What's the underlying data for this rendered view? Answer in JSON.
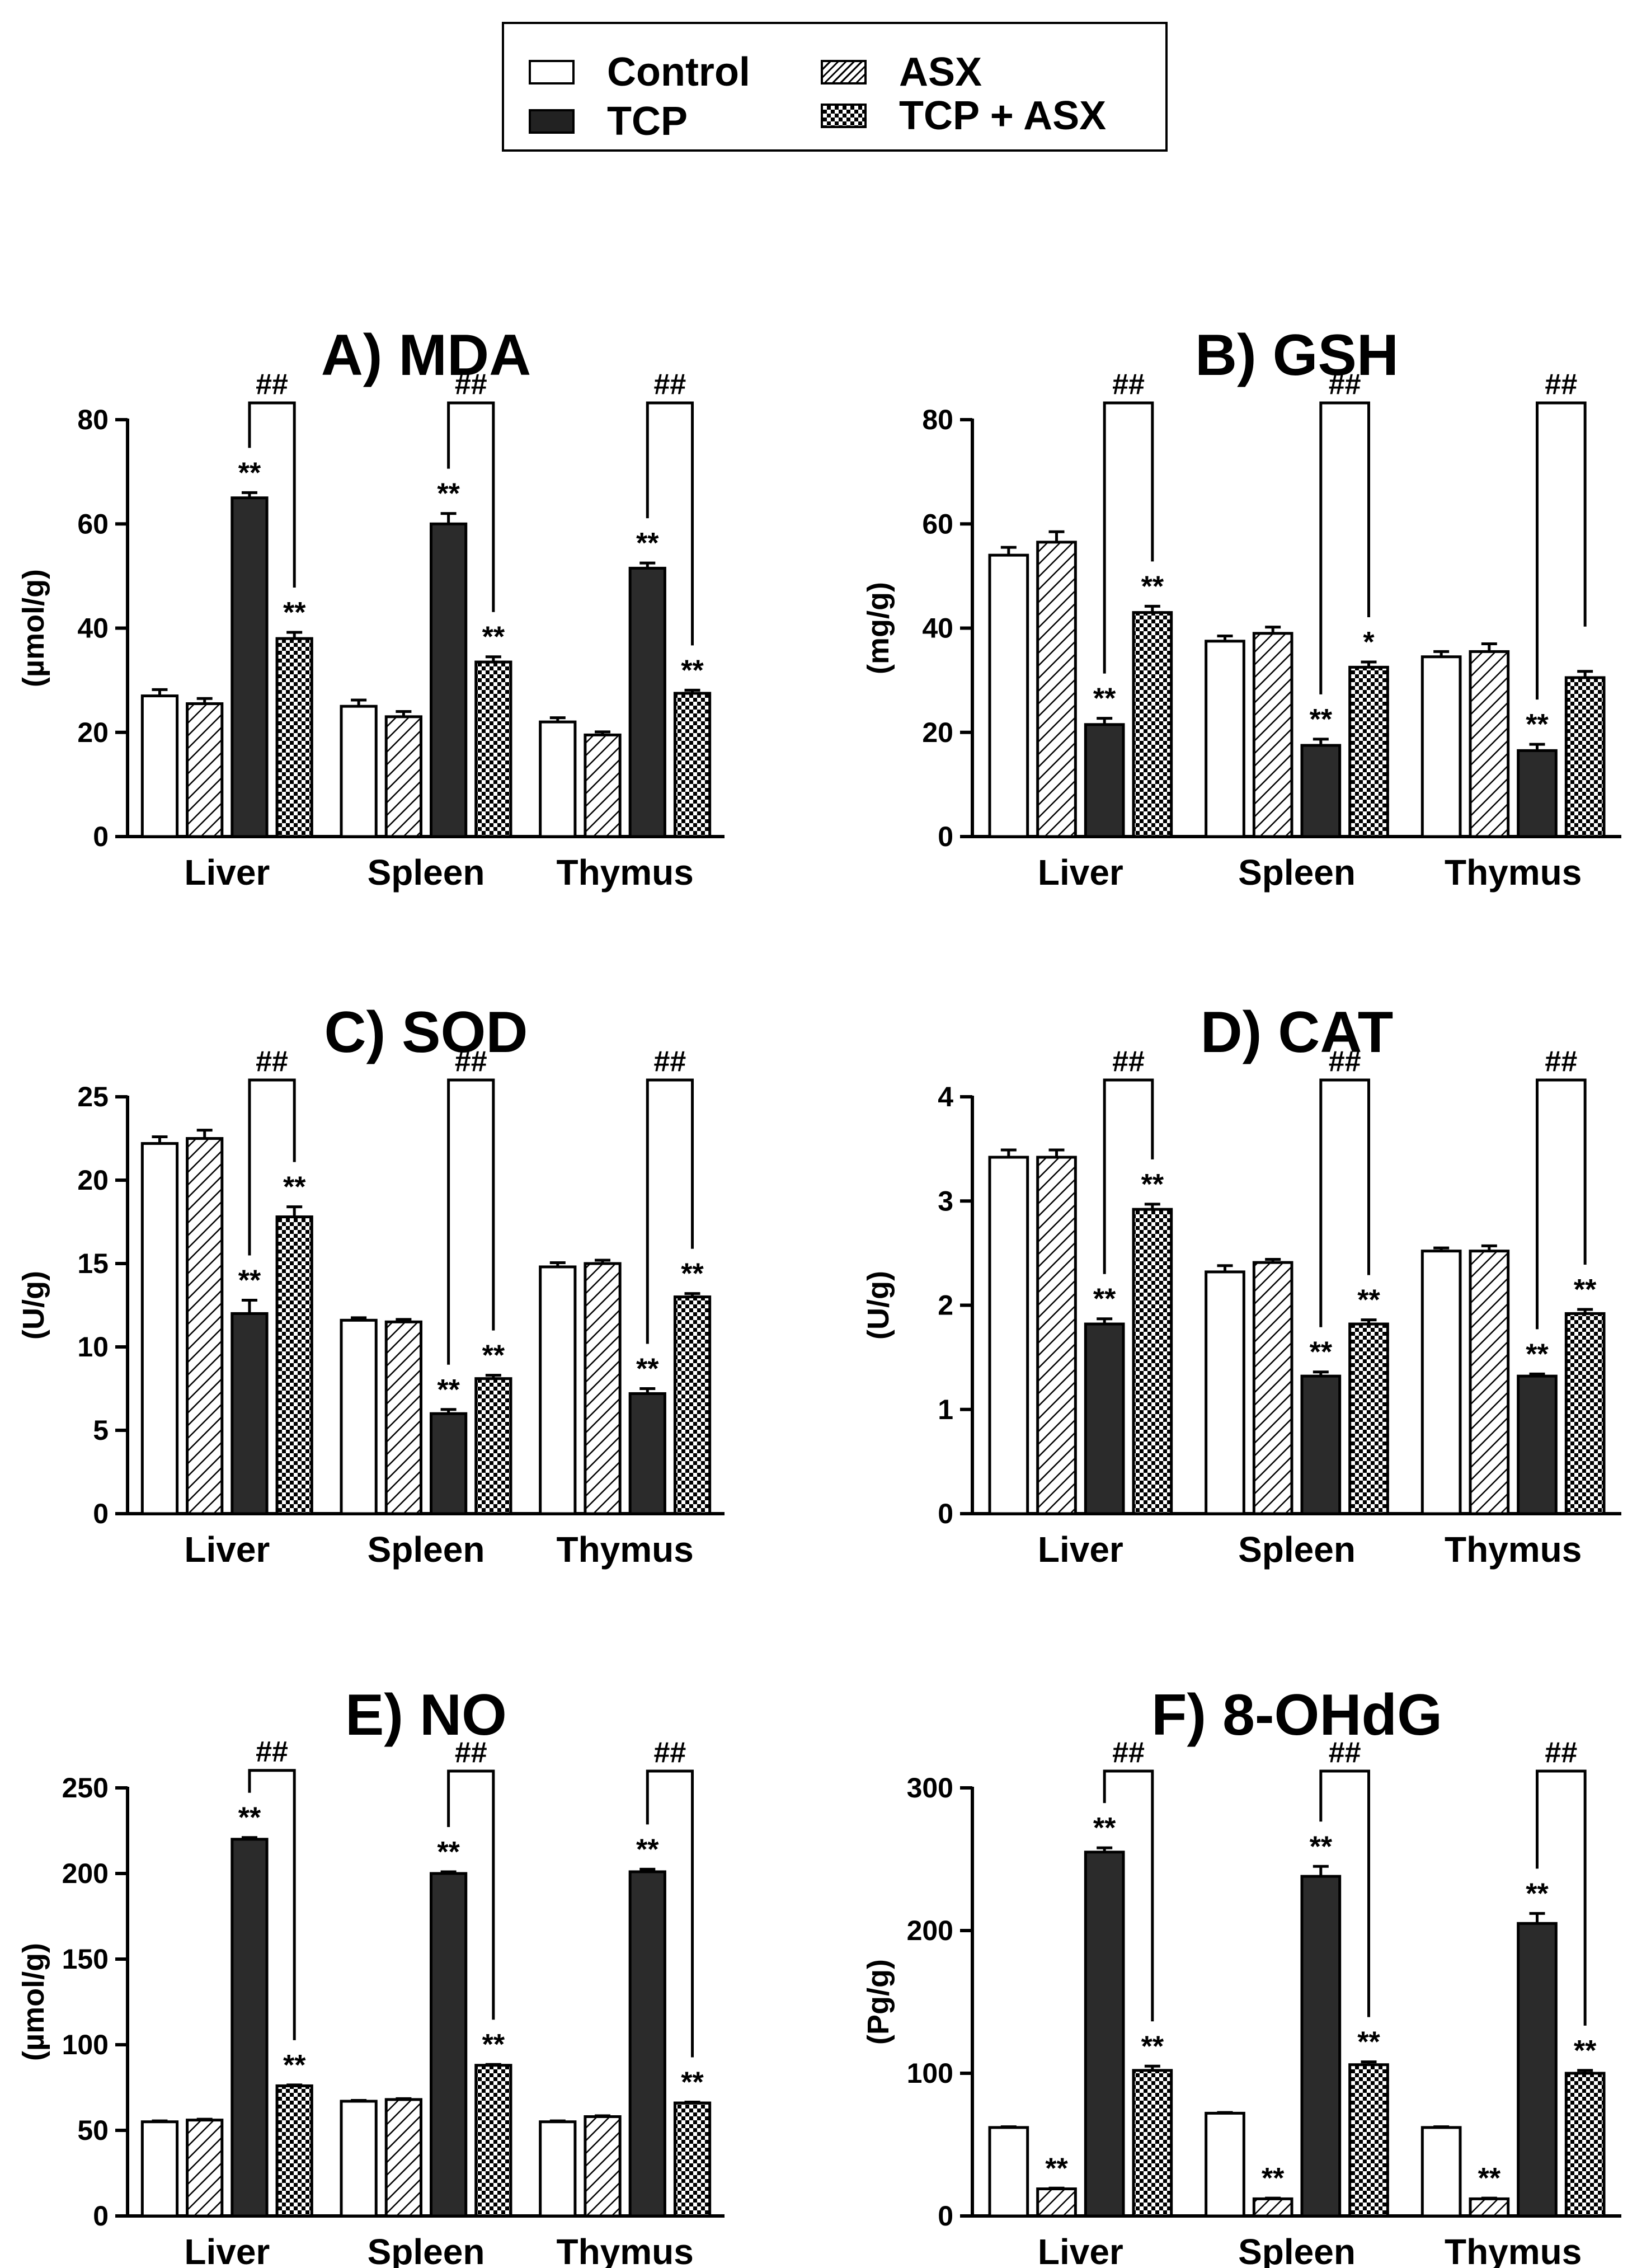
{
  "legend": {
    "items": [
      {
        "label": "Control",
        "pattern": "white"
      },
      {
        "label": "ASX",
        "pattern": "hatch"
      },
      {
        "label": "TCP",
        "pattern": "black"
      },
      {
        "label": "TCP + ASX",
        "pattern": "checker"
      }
    ]
  },
  "colors": {
    "bar_dark": "#2b2b2b",
    "stroke": "#000000",
    "background": "#ffffff"
  },
  "chart_data": [
    {
      "type": "bar",
      "title": "A) MDA",
      "ylabel": "(µmol/g)",
      "categories": [
        "Liver",
        "Spleen",
        "Thymus"
      ],
      "ylim": [
        0,
        80
      ],
      "yticks": [
        0,
        20,
        40,
        60,
        80
      ],
      "series": [
        {
          "name": "Control",
          "values": [
            27,
            25,
            22
          ],
          "errors": [
            1.2,
            1.2,
            0.8
          ]
        },
        {
          "name": "ASX",
          "values": [
            25.5,
            23,
            19.5
          ],
          "errors": [
            1.0,
            1.0,
            0.6
          ]
        },
        {
          "name": "TCP",
          "values": [
            65,
            60,
            51.5
          ],
          "errors": [
            1.0,
            2.0,
            1.0
          ]
        },
        {
          "name": "TCP + ASX",
          "values": [
            38,
            33.5,
            27.5
          ],
          "errors": [
            1.2,
            1.0,
            0.6
          ]
        }
      ],
      "significance": [
        [
          "",
          "",
          "**",
          "**"
        ],
        [
          "",
          "",
          "**",
          "**"
        ],
        [
          "",
          "",
          "**",
          "**"
        ]
      ],
      "comparison_label": "##"
    },
    {
      "type": "bar",
      "title": "B) GSH",
      "ylabel": "(mg/g)",
      "categories": [
        "Liver",
        "Spleen",
        "Thymus"
      ],
      "ylim": [
        0,
        80
      ],
      "yticks": [
        0,
        20,
        40,
        60,
        80
      ],
      "series": [
        {
          "name": "Control",
          "values": [
            54,
            37.5,
            34.5
          ],
          "errors": [
            1.5,
            1.0,
            1.0
          ]
        },
        {
          "name": "ASX",
          "values": [
            56.5,
            39,
            35.5
          ],
          "errors": [
            2.0,
            1.2,
            1.5
          ]
        },
        {
          "name": "TCP",
          "values": [
            21.5,
            17.5,
            16.5
          ],
          "errors": [
            1.2,
            1.2,
            1.2
          ]
        },
        {
          "name": "TCP + ASX",
          "values": [
            43,
            32.5,
            30.5
          ],
          "errors": [
            1.2,
            1.0,
            1.2
          ]
        }
      ],
      "significance": [
        [
          "",
          "",
          "**",
          "**"
        ],
        [
          "",
          "",
          "**",
          "*"
        ],
        [
          "",
          "",
          "**",
          ""
        ]
      ],
      "comparison_label": "##"
    },
    {
      "type": "bar",
      "title": "C) SOD",
      "ylabel": "(U/g)",
      "categories": [
        "Liver",
        "Spleen",
        "Thymus"
      ],
      "ylim": [
        0,
        25
      ],
      "yticks": [
        0,
        5,
        10,
        15,
        20,
        25
      ],
      "series": [
        {
          "name": "Control",
          "values": [
            22.2,
            11.6,
            14.8
          ],
          "errors": [
            0.4,
            0.15,
            0.25
          ]
        },
        {
          "name": "ASX",
          "values": [
            22.5,
            11.5,
            15.0
          ],
          "errors": [
            0.5,
            0.15,
            0.2
          ]
        },
        {
          "name": "TCP",
          "values": [
            12.0,
            6.0,
            7.2
          ],
          "errors": [
            0.8,
            0.25,
            0.3
          ]
        },
        {
          "name": "TCP + ASX",
          "values": [
            17.8,
            8.1,
            13.0
          ],
          "errors": [
            0.6,
            0.2,
            0.2
          ]
        }
      ],
      "significance": [
        [
          "",
          "",
          "**",
          "**"
        ],
        [
          "",
          "",
          "**",
          "**"
        ],
        [
          "",
          "",
          "**",
          "**"
        ]
      ],
      "comparison_label": "##"
    },
    {
      "type": "bar",
      "title": "D) CAT",
      "ylabel": "(U/g)",
      "categories": [
        "Liver",
        "Spleen",
        "Thymus"
      ],
      "ylim": [
        0,
        4
      ],
      "yticks": [
        0,
        1,
        2,
        3,
        4
      ],
      "series": [
        {
          "name": "Control",
          "values": [
            3.42,
            2.32,
            2.52
          ],
          "errors": [
            0.07,
            0.06,
            0.03
          ]
        },
        {
          "name": "ASX",
          "values": [
            3.42,
            2.41,
            2.52
          ],
          "errors": [
            0.07,
            0.03,
            0.05
          ]
        },
        {
          "name": "TCP",
          "values": [
            1.82,
            1.32,
            1.32
          ],
          "errors": [
            0.05,
            0.04,
            0.02
          ]
        },
        {
          "name": "TCP + ASX",
          "values": [
            2.92,
            1.82,
            1.92
          ],
          "errors": [
            0.05,
            0.04,
            0.04
          ]
        }
      ],
      "significance": [
        [
          "",
          "",
          "**",
          "**"
        ],
        [
          "",
          "",
          "**",
          "**"
        ],
        [
          "",
          "",
          "**",
          "**"
        ]
      ],
      "comparison_label": "##"
    },
    {
      "type": "bar",
      "title": "E) NO",
      "ylabel": "(µmol/g)",
      "categories": [
        "Liver",
        "Spleen",
        "Thymus"
      ],
      "ylim": [
        0,
        250
      ],
      "yticks": [
        0,
        50,
        100,
        150,
        200,
        250
      ],
      "series": [
        {
          "name": "Control",
          "values": [
            55,
            67,
            55
          ],
          "errors": [
            0.5,
            0.5,
            0.5
          ]
        },
        {
          "name": "ASX",
          "values": [
            56,
            68,
            58
          ],
          "errors": [
            0.5,
            0.5,
            0.5
          ]
        },
        {
          "name": "TCP",
          "values": [
            220,
            200,
            201
          ],
          "errors": [
            1.0,
            1.0,
            1.5
          ]
        },
        {
          "name": "TCP + ASX",
          "values": [
            76,
            88,
            66
          ],
          "errors": [
            0.5,
            0.5,
            0.5
          ]
        }
      ],
      "significance": [
        [
          "",
          "",
          "**",
          "**"
        ],
        [
          "",
          "",
          "**",
          "**"
        ],
        [
          "",
          "",
          "**",
          "**"
        ]
      ],
      "comparison_label": "##"
    },
    {
      "type": "bar",
      "title": "F) 8-OHdG",
      "ylabel": "(Pg/g)",
      "categories": [
        "Liver",
        "Spleen",
        "Thymus"
      ],
      "ylim": [
        0,
        300
      ],
      "yticks": [
        0,
        100,
        200,
        300
      ],
      "series": [
        {
          "name": "Control",
          "values": [
            62,
            72,
            62
          ],
          "errors": [
            0.5,
            0.5,
            0.5
          ]
        },
        {
          "name": "ASX",
          "values": [
            19,
            12,
            12
          ],
          "errors": [
            0.5,
            0.5,
            0.5
          ]
        },
        {
          "name": "TCP",
          "values": [
            255,
            238,
            205
          ],
          "errors": [
            3,
            7,
            7
          ]
        },
        {
          "name": "TCP + ASX",
          "values": [
            102,
            106,
            100
          ],
          "errors": [
            3,
            2,
            2
          ]
        }
      ],
      "significance": [
        [
          "",
          "**",
          "**",
          "**"
        ],
        [
          "",
          "**",
          "**",
          "**"
        ],
        [
          "",
          "**",
          "**",
          "**"
        ]
      ],
      "comparison_label": "##"
    }
  ]
}
